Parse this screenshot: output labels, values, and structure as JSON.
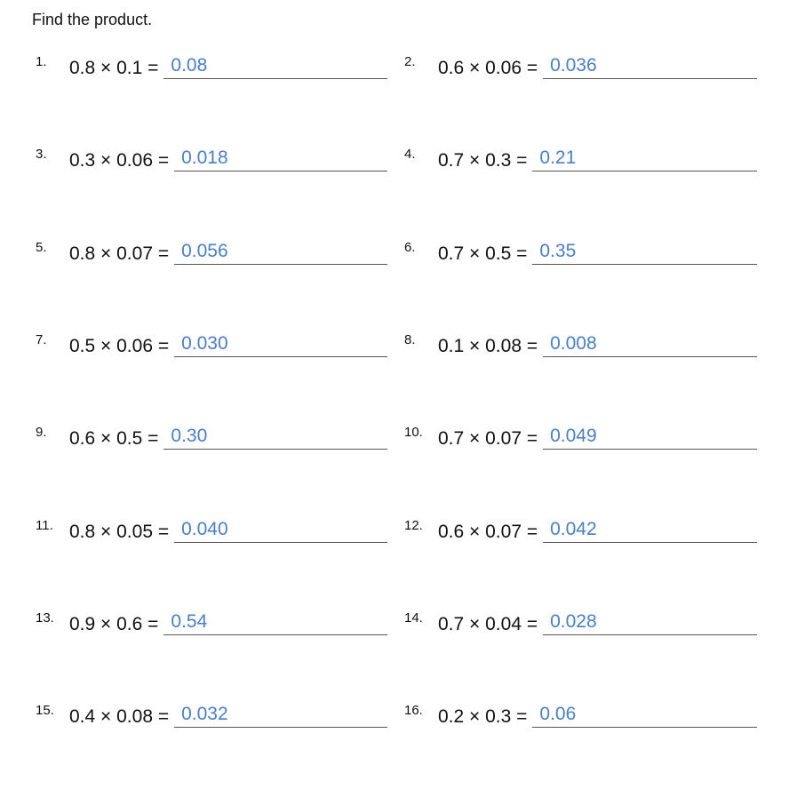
{
  "title": "Find the product.",
  "answer_color": "#4a7fc8",
  "problems": [
    {
      "n": "1.",
      "expr": "0.8 × 0.1 =",
      "ans": "0.08"
    },
    {
      "n": "2.",
      "expr": "0.6 × 0.06 =",
      "ans": "0.036"
    },
    {
      "n": "3.",
      "expr": "0.3 × 0.06 =",
      "ans": "0.018"
    },
    {
      "n": "4.",
      "expr": "0.7 × 0.3 =",
      "ans": "0.21"
    },
    {
      "n": "5.",
      "expr": "0.8 × 0.07 =",
      "ans": "0.056"
    },
    {
      "n": "6.",
      "expr": "0.7 × 0.5 =",
      "ans": "0.35"
    },
    {
      "n": "7.",
      "expr": "0.5 × 0.06 =",
      "ans": "0.030"
    },
    {
      "n": "8.",
      "expr": "0.1 × 0.08 =",
      "ans": "0.008"
    },
    {
      "n": "9.",
      "expr": "0.6 × 0.5 =",
      "ans": "0.30"
    },
    {
      "n": "10.",
      "expr": "0.7 × 0.07 =",
      "ans": "0.049"
    },
    {
      "n": "11.",
      "expr": "0.8 × 0.05 =",
      "ans": "0.040"
    },
    {
      "n": "12.",
      "expr": "0.6 × 0.07 =",
      "ans": "0.042"
    },
    {
      "n": "13.",
      "expr": "0.9 × 0.6 =",
      "ans": "0.54"
    },
    {
      "n": "14.",
      "expr": "0.7 × 0.04 =",
      "ans": "0.028"
    },
    {
      "n": "15.",
      "expr": "0.4 × 0.08 =",
      "ans": "0.032"
    },
    {
      "n": "16.",
      "expr": "0.2 × 0.3 =",
      "ans": "0.06"
    }
  ]
}
